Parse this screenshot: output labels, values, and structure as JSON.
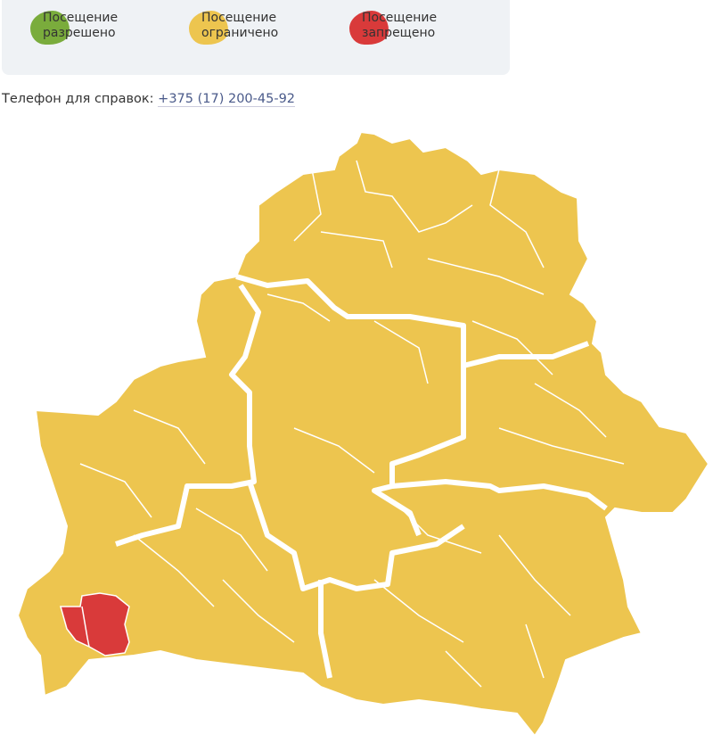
{
  "legend": [
    {
      "line1": "Посещение",
      "line2": "разрешено",
      "color": "#7aac3c"
    },
    {
      "line1": "Посещение",
      "line2": "ограничено",
      "color": "#edc54f"
    },
    {
      "line1": "Посещение",
      "line2": "запрещено",
      "color": "#d93a3a"
    }
  ],
  "phone": {
    "label": "Телефон для справок:",
    "number": "+375 (17) 200-45-92"
  },
  "map": {
    "restricted_color": "#edc54f",
    "forbidden_color": "#d93a3a",
    "border_color": "#ffffff"
  }
}
